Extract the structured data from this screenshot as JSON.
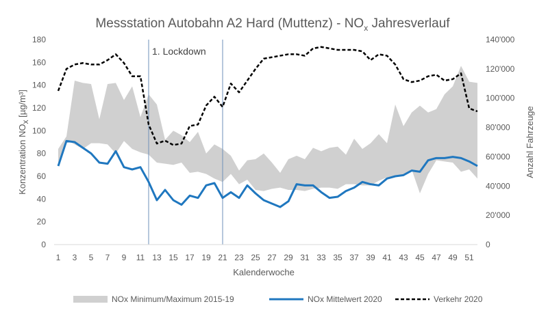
{
  "chart_data": {
    "type": "line",
    "title": {
      "prefix": "Messstation Autobahn A2 Hard (Muttenz) - NO",
      "subscript": "x",
      "suffix": " Jahresverlauf"
    },
    "xlabel": "Kalenderwoche",
    "ylabel_left": {
      "prefix": "Konzentration NO",
      "subscript": "x",
      "suffix": " [µg/m³]"
    },
    "ylabel_right": "Anzahl Fahrzeuge",
    "ylim_left": [
      0,
      180
    ],
    "ylim_right": [
      0,
      140000
    ],
    "yticks_left": [
      "0",
      "20",
      "40",
      "60",
      "80",
      "100",
      "120",
      "140",
      "160",
      "180"
    ],
    "yticks_right": [
      "0",
      "20'000",
      "40'000",
      "60'000",
      "80'000",
      "100'000",
      "120'000",
      "140'000"
    ],
    "xticks": [
      "1",
      "3",
      "5",
      "7",
      "9",
      "11",
      "13",
      "15",
      "17",
      "19",
      "21",
      "23",
      "25",
      "27",
      "29",
      "31",
      "33",
      "35",
      "37",
      "39",
      "41",
      "43",
      "45",
      "47",
      "49",
      "51"
    ],
    "x": [
      1,
      2,
      3,
      4,
      5,
      6,
      7,
      8,
      9,
      10,
      11,
      12,
      13,
      14,
      15,
      16,
      17,
      18,
      19,
      20,
      21,
      22,
      23,
      24,
      25,
      26,
      27,
      28,
      29,
      30,
      31,
      32,
      33,
      34,
      35,
      36,
      37,
      38,
      39,
      40,
      41,
      42,
      43,
      44,
      45,
      46,
      47,
      48,
      49,
      50,
      51,
      52
    ],
    "series": [
      {
        "name": "NOx Minimum/Maximum 2015-19",
        "kind": "band",
        "axis": "left",
        "color": "#d0d0d0",
        "min": [
          70,
          92,
          88,
          84,
          89,
          89,
          88,
          80,
          91,
          84,
          81,
          79,
          72,
          71,
          70,
          72,
          63,
          64,
          62,
          58,
          55,
          62,
          53,
          57,
          48,
          47,
          49,
          50,
          48,
          48,
          47,
          49,
          50,
          50,
          49,
          53,
          53,
          52,
          52,
          56,
          59,
          60,
          61,
          66,
          45,
          62,
          74,
          73,
          72,
          64,
          66,
          58
        ],
        "max": [
          84,
          95,
          144,
          142,
          141,
          110,
          141,
          142,
          127,
          139,
          112,
          132,
          123,
          92,
          100,
          96,
          90,
          99,
          80,
          88,
          84,
          78,
          65,
          74,
          75,
          80,
          72,
          63,
          75,
          78,
          75,
          85,
          82,
          85,
          86,
          79,
          93,
          84,
          89,
          97,
          89,
          123,
          104,
          116,
          122,
          116,
          119,
          132,
          139,
          157,
          143,
          142
        ]
      },
      {
        "name": "NOx Mittelwert 2020",
        "kind": "line",
        "axis": "left",
        "color": "#1f77bf",
        "values": [
          69,
          91,
          90,
          85,
          80,
          72,
          71,
          82,
          68,
          66,
          68,
          55,
          39,
          48,
          39,
          35,
          43,
          41,
          52,
          54,
          41,
          46,
          41,
          52,
          45,
          39,
          36,
          33,
          38,
          53,
          52,
          52,
          46,
          41,
          42,
          47,
          50,
          55,
          53,
          52,
          58,
          60,
          61,
          65,
          64,
          74,
          76,
          76,
          77,
          76,
          73,
          69
        ]
      },
      {
        "name": "Verkehr 2020",
        "kind": "line",
        "axis": "right",
        "color": "#000000",
        "values": [
          105000,
          120000,
          123000,
          124000,
          123000,
          123000,
          126000,
          130000,
          124000,
          115000,
          115000,
          82000,
          69000,
          71000,
          68000,
          69000,
          81000,
          82000,
          95000,
          101000,
          94000,
          110000,
          104000,
          112000,
          120000,
          127000,
          128000,
          129000,
          130000,
          130000,
          129000,
          134000,
          135000,
          134000,
          133000,
          133000,
          133000,
          132000,
          126000,
          130000,
          129000,
          123000,
          113000,
          111000,
          112000,
          115000,
          116000,
          112000,
          113000,
          117000,
          93000,
          91000
        ]
      }
    ],
    "vlines": [
      12,
      21
    ],
    "annotation": "1. Lockdown",
    "legend": "bottom",
    "grid": false
  }
}
